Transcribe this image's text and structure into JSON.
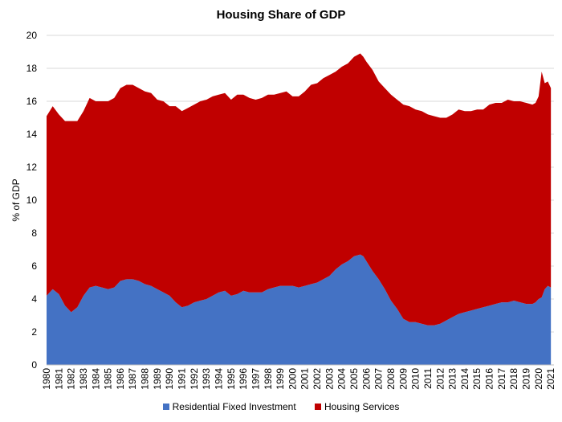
{
  "chart_data": {
    "type": "area",
    "title": "Housing Share of GDP",
    "ylabel": "% of GDP",
    "xlabel": "",
    "ylim": [
      0,
      20
    ],
    "yticks": [
      0,
      2,
      4,
      6,
      8,
      10,
      12,
      14,
      16,
      18,
      20
    ],
    "x_tick_labels": [
      "1980",
      "1981",
      "1982",
      "1983",
      "1984",
      "1985",
      "1986",
      "1987",
      "1988",
      "1989",
      "1990",
      "1991",
      "1992",
      "1993",
      "1994",
      "1995",
      "1996",
      "1997",
      "1998",
      "1999",
      "2000",
      "2001",
      "2002",
      "2003",
      "2004",
      "2005",
      "2006",
      "2007",
      "2008",
      "2009",
      "2010",
      "2011",
      "2012",
      "2013",
      "2014",
      "2015",
      "2016",
      "2017",
      "2018",
      "2019",
      "2020",
      "2021"
    ],
    "stacked": true,
    "grid": "horizontal",
    "legend_position": "bottom",
    "x": [
      1980.0,
      1980.5,
      1981.0,
      1981.5,
      1982.0,
      1982.5,
      1983.0,
      1983.5,
      1984.0,
      1984.5,
      1985.0,
      1985.5,
      1986.0,
      1986.5,
      1987.0,
      1987.5,
      1988.0,
      1988.5,
      1989.0,
      1989.5,
      1990.0,
      1990.5,
      1991.0,
      1991.5,
      1992.0,
      1992.5,
      1993.0,
      1993.5,
      1994.0,
      1994.5,
      1995.0,
      1995.5,
      1996.0,
      1996.5,
      1997.0,
      1997.5,
      1998.0,
      1998.5,
      1999.0,
      1999.5,
      2000.0,
      2000.5,
      2001.0,
      2001.5,
      2002.0,
      2002.5,
      2003.0,
      2003.5,
      2004.0,
      2004.5,
      2005.0,
      2005.5,
      2005.75,
      2006.0,
      2006.5,
      2007.0,
      2007.5,
      2008.0,
      2008.5,
      2009.0,
      2009.5,
      2010.0,
      2010.5,
      2011.0,
      2011.5,
      2012.0,
      2012.5,
      2013.0,
      2013.5,
      2014.0,
      2014.5,
      2015.0,
      2015.5,
      2016.0,
      2016.5,
      2017.0,
      2017.5,
      2018.0,
      2018.5,
      2019.0,
      2019.5,
      2019.75,
      2020.0,
      2020.25,
      2020.5,
      2020.75,
      2021.0
    ],
    "series": [
      {
        "name": "Residential Fixed Investment",
        "color": "#4472C4",
        "values": [
          4.2,
          4.6,
          4.3,
          3.6,
          3.2,
          3.5,
          4.2,
          4.7,
          4.8,
          4.7,
          4.6,
          4.7,
          5.1,
          5.2,
          5.2,
          5.1,
          4.9,
          4.8,
          4.6,
          4.4,
          4.2,
          3.8,
          3.5,
          3.6,
          3.8,
          3.9,
          4.0,
          4.2,
          4.4,
          4.5,
          4.2,
          4.3,
          4.5,
          4.4,
          4.4,
          4.4,
          4.6,
          4.7,
          4.8,
          4.8,
          4.8,
          4.7,
          4.8,
          4.9,
          5.0,
          5.2,
          5.4,
          5.8,
          6.1,
          6.3,
          6.6,
          6.7,
          6.6,
          6.3,
          5.7,
          5.2,
          4.6,
          3.9,
          3.4,
          2.8,
          2.6,
          2.6,
          2.5,
          2.4,
          2.4,
          2.5,
          2.7,
          2.9,
          3.1,
          3.2,
          3.3,
          3.4,
          3.5,
          3.6,
          3.7,
          3.8,
          3.8,
          3.9,
          3.8,
          3.7,
          3.7,
          3.8,
          4.0,
          4.1,
          4.6,
          4.8,
          4.7
        ]
      },
      {
        "name": "Housing Services",
        "color": "#C00000",
        "values": [
          10.9,
          11.1,
          10.9,
          11.2,
          11.6,
          11.3,
          11.2,
          11.5,
          11.2,
          11.3,
          11.4,
          11.5,
          11.7,
          11.8,
          11.8,
          11.7,
          11.7,
          11.7,
          11.5,
          11.6,
          11.5,
          11.9,
          11.9,
          12.0,
          12.0,
          12.1,
          12.1,
          12.1,
          12.0,
          12.0,
          11.9,
          12.1,
          11.9,
          11.8,
          11.7,
          11.8,
          11.8,
          11.7,
          11.7,
          11.8,
          11.5,
          11.6,
          11.8,
          12.1,
          12.1,
          12.2,
          12.2,
          12.0,
          12.0,
          12.0,
          12.1,
          12.2,
          12.1,
          12.1,
          12.2,
          12.0,
          12.2,
          12.5,
          12.7,
          13.0,
          13.1,
          12.9,
          12.9,
          12.8,
          12.7,
          12.5,
          12.3,
          12.3,
          12.4,
          12.2,
          12.1,
          12.1,
          12.0,
          12.2,
          12.2,
          12.1,
          12.3,
          12.1,
          12.2,
          12.2,
          12.1,
          12.1,
          12.3,
          13.7,
          12.5,
          12.4,
          12.1
        ]
      }
    ]
  }
}
